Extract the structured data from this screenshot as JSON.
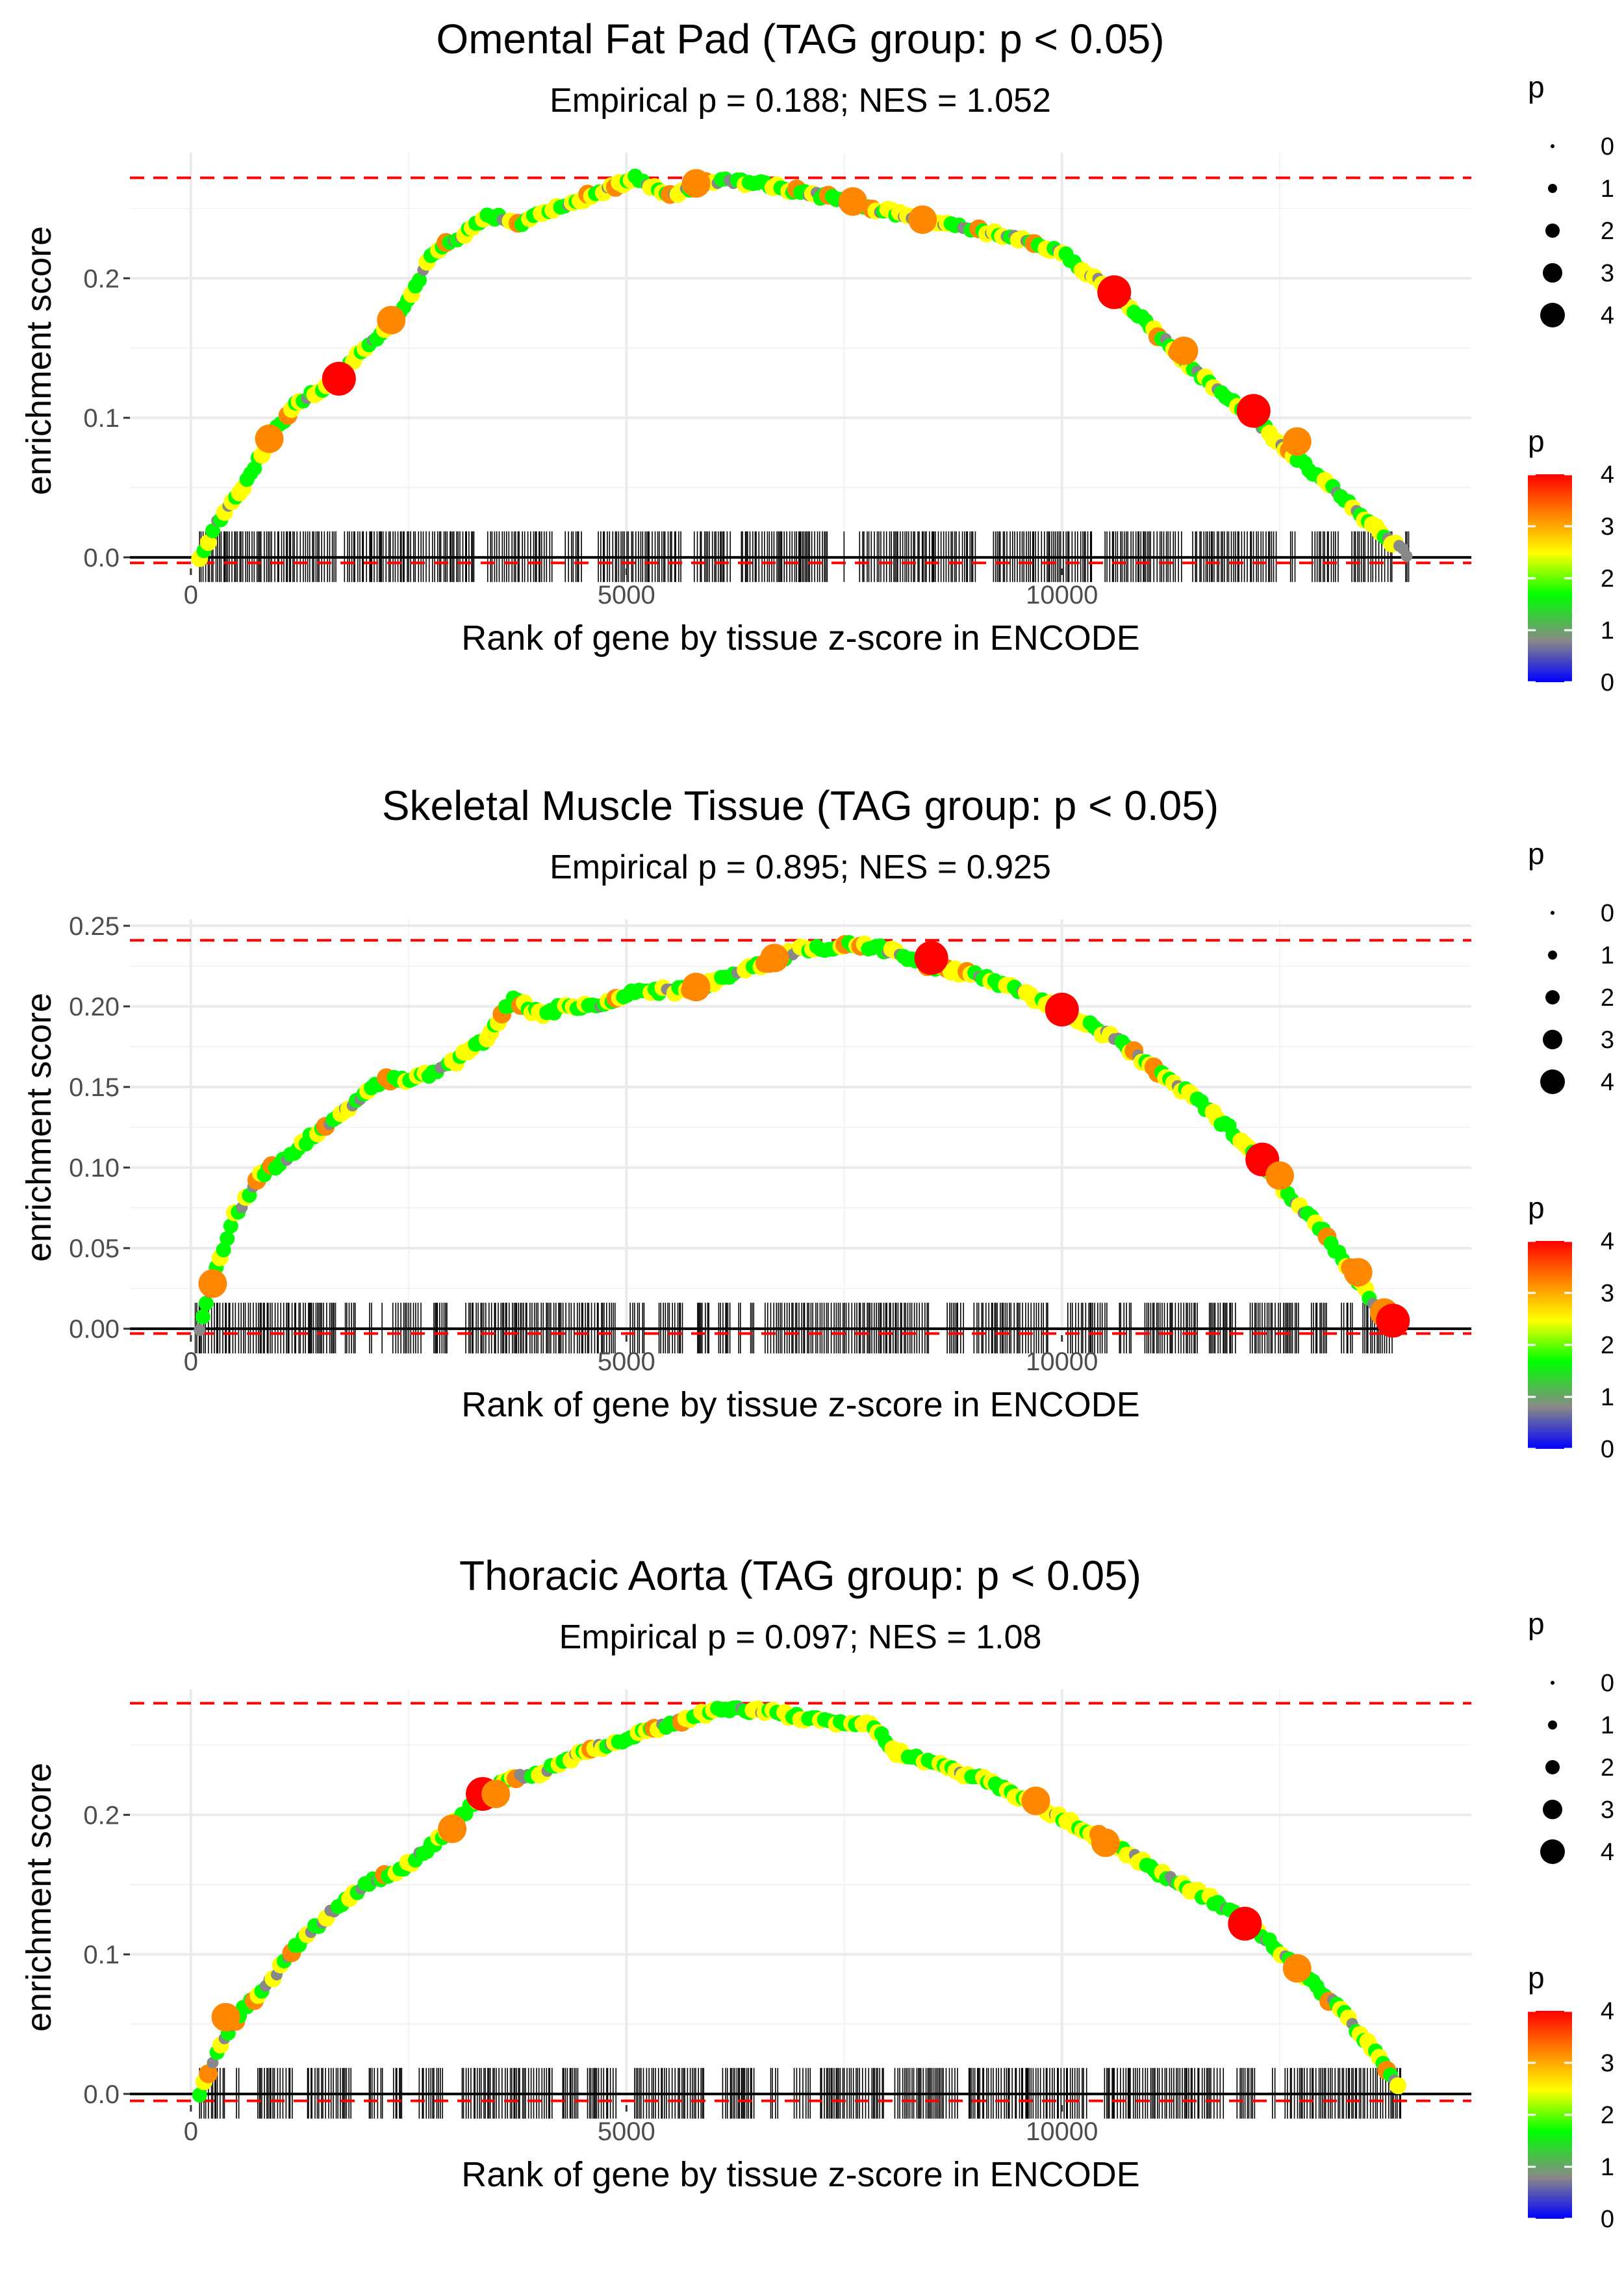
{
  "chart_data": [
    {
      "type": "line",
      "title": "Omental Fat Pad (TAG group: p < 0.05)",
      "subtitle": "Empirical p = 0.188; NES = 1.052",
      "xlabel": "Rank of gene by tissue z-score in ENCODE",
      "ylabel": "enrichment score",
      "xlim": [
        -700,
        14700
      ],
      "ylim": [
        -0.008,
        0.29
      ],
      "x_ticks": [
        0,
        5000,
        10000
      ],
      "x_tick_labels": [
        "0",
        "5000",
        "10000"
      ],
      "y_ticks": [
        0.0,
        0.1,
        0.2
      ],
      "y_tick_labels": [
        "0.0",
        "0.1",
        "0.2"
      ],
      "max_es": 0.272,
      "min_es": -0.004,
      "rug_range": [
        100,
        14000
      ],
      "curve": [
        [
          100,
          0
        ],
        [
          300,
          0.025
        ],
        [
          600,
          0.05
        ],
        [
          900,
          0.085
        ],
        [
          1200,
          0.11
        ],
        [
          1600,
          0.125
        ],
        [
          2000,
          0.15
        ],
        [
          2400,
          0.175
        ],
        [
          2800,
          0.22
        ],
        [
          3100,
          0.23
        ],
        [
          3400,
          0.245
        ],
        [
          3800,
          0.24
        ],
        [
          4200,
          0.25
        ],
        [
          4600,
          0.26
        ],
        [
          5100,
          0.272
        ],
        [
          5500,
          0.26
        ],
        [
          6000,
          0.27
        ],
        [
          6500,
          0.268
        ],
        [
          7000,
          0.262
        ],
        [
          7500,
          0.255
        ],
        [
          8000,
          0.248
        ],
        [
          8500,
          0.24
        ],
        [
          9000,
          0.235
        ],
        [
          9500,
          0.228
        ],
        [
          10000,
          0.218
        ],
        [
          10600,
          0.19
        ],
        [
          11100,
          0.16
        ],
        [
          11600,
          0.13
        ],
        [
          12200,
          0.1
        ],
        [
          12700,
          0.07
        ],
        [
          13200,
          0.045
        ],
        [
          13700,
          0.015
        ],
        [
          14000,
          0
        ]
      ],
      "highlight_points": [
        [
          1700,
          0.128,
          4
        ],
        [
          2300,
          0.17,
          3
        ],
        [
          900,
          0.085,
          3
        ],
        [
          5800,
          0.268,
          3
        ],
        [
          7600,
          0.255,
          3
        ],
        [
          8400,
          0.242,
          3
        ],
        [
          10600,
          0.19,
          4
        ],
        [
          11400,
          0.148,
          3
        ],
        [
          12200,
          0.105,
          4
        ],
        [
          12700,
          0.083,
          3
        ]
      ],
      "legend": {
        "size_title": "p",
        "size_values": [
          "0",
          "1",
          "2",
          "3",
          "4"
        ],
        "color_title": "p",
        "color_values": [
          "0",
          "1",
          "2",
          "3",
          "4"
        ],
        "color_stops": [
          "#0000ff",
          "#888888",
          "#00ff00",
          "#ffff00",
          "#ff8800",
          "#ff0000"
        ]
      }
    },
    {
      "type": "line",
      "title": "Skeletal Muscle Tissue (TAG group: p < 0.05)",
      "subtitle": "Empirical p = 0.895; NES = 0.925",
      "xlabel": "Rank of gene by tissue z-score in ENCODE",
      "ylabel": "enrichment score",
      "xlim": [
        -700,
        14700
      ],
      "ylim": [
        -0.004,
        0.254
      ],
      "x_ticks": [
        0,
        5000,
        10000
      ],
      "x_tick_labels": [
        "0",
        "5000",
        "10000"
      ],
      "y_ticks": [
        0.0,
        0.05,
        0.1,
        0.15,
        0.2,
        0.25
      ],
      "y_tick_labels": [
        "0.00",
        "0.05",
        "0.10",
        "0.15",
        "0.20",
        "0.25"
      ],
      "max_es": 0.241,
      "min_es": -0.003,
      "rug_range": [
        50,
        13800
      ],
      "curve": [
        [
          100,
          0
        ],
        [
          250,
          0.03
        ],
        [
          500,
          0.07
        ],
        [
          800,
          0.095
        ],
        [
          1100,
          0.105
        ],
        [
          1500,
          0.125
        ],
        [
          1900,
          0.14
        ],
        [
          2200,
          0.155
        ],
        [
          2600,
          0.155
        ],
        [
          3000,
          0.165
        ],
        [
          3400,
          0.18
        ],
        [
          3700,
          0.205
        ],
        [
          4000,
          0.195
        ],
        [
          4300,
          0.2
        ],
        [
          4700,
          0.2
        ],
        [
          5100,
          0.21
        ],
        [
          5600,
          0.21
        ],
        [
          6000,
          0.215
        ],
        [
          6500,
          0.225
        ],
        [
          7000,
          0.235
        ],
        [
          7600,
          0.238
        ],
        [
          8000,
          0.235
        ],
        [
          8500,
          0.225
        ],
        [
          9000,
          0.22
        ],
        [
          9500,
          0.21
        ],
        [
          10000,
          0.198
        ],
        [
          10600,
          0.18
        ],
        [
          11100,
          0.16
        ],
        [
          11600,
          0.14
        ],
        [
          12100,
          0.115
        ],
        [
          12500,
          0.09
        ],
        [
          13000,
          0.06
        ],
        [
          13400,
          0.03
        ],
        [
          13700,
          0.008
        ],
        [
          13800,
          0
        ]
      ],
      "highlight_points": [
        [
          250,
          0.028,
          3
        ],
        [
          5800,
          0.212,
          3
        ],
        [
          6700,
          0.23,
          3
        ],
        [
          8500,
          0.23,
          4
        ],
        [
          10000,
          0.198,
          4
        ],
        [
          12300,
          0.105,
          4
        ],
        [
          12500,
          0.095,
          3
        ],
        [
          13400,
          0.035,
          3
        ],
        [
          13700,
          0.01,
          3
        ],
        [
          13800,
          0.005,
          4
        ]
      ],
      "legend": {
        "size_title": "p",
        "size_values": [
          "0",
          "1",
          "2",
          "3",
          "4"
        ],
        "color_title": "p",
        "color_values": [
          "0",
          "1",
          "2",
          "3",
          "4"
        ],
        "color_stops": [
          "#0000ff",
          "#888888",
          "#00ff00",
          "#ffff00",
          "#ff8800",
          "#ff0000"
        ]
      }
    },
    {
      "type": "line",
      "title": "Thoracic Aorta (TAG group: p < 0.05)",
      "subtitle": "Empirical p = 0.097; NES = 1.08",
      "xlabel": "Rank of gene by tissue z-score in ENCODE",
      "ylabel": "enrichment score",
      "xlim": [
        -700,
        14700
      ],
      "ylim": [
        -0.008,
        0.29
      ],
      "x_ticks": [
        0,
        5000,
        10000
      ],
      "x_tick_labels": [
        "0",
        "5000",
        "10000"
      ],
      "y_ticks": [
        0.0,
        0.1,
        0.2
      ],
      "y_tick_labels": [
        "0.0",
        "0.1",
        "0.2"
      ],
      "max_es": 0.28,
      "min_es": -0.005,
      "rug_range": [
        100,
        13900
      ],
      "curve": [
        [
          100,
          0
        ],
        [
          300,
          0.03
        ],
        [
          600,
          0.06
        ],
        [
          900,
          0.08
        ],
        [
          1200,
          0.105
        ],
        [
          1600,
          0.13
        ],
        [
          2000,
          0.15
        ],
        [
          2400,
          0.16
        ],
        [
          2800,
          0.18
        ],
        [
          3200,
          0.205
        ],
        [
          3600,
          0.225
        ],
        [
          4000,
          0.23
        ],
        [
          4500,
          0.245
        ],
        [
          5000,
          0.255
        ],
        [
          5500,
          0.265
        ],
        [
          6000,
          0.275
        ],
        [
          6500,
          0.275
        ],
        [
          7000,
          0.27
        ],
        [
          7500,
          0.265
        ],
        [
          7800,
          0.265
        ],
        [
          8100,
          0.245
        ],
        [
          8600,
          0.235
        ],
        [
          9100,
          0.225
        ],
        [
          9600,
          0.21
        ],
        [
          10100,
          0.195
        ],
        [
          10700,
          0.175
        ],
        [
          11200,
          0.155
        ],
        [
          11700,
          0.14
        ],
        [
          12200,
          0.12
        ],
        [
          12700,
          0.09
        ],
        [
          13200,
          0.06
        ],
        [
          13600,
          0.03
        ],
        [
          13900,
          0
        ]
      ],
      "highlight_points": [
        [
          400,
          0.055,
          3
        ],
        [
          3000,
          0.19,
          3
        ],
        [
          3350,
          0.215,
          4
        ],
        [
          3500,
          0.215,
          3
        ],
        [
          9700,
          0.21,
          3
        ],
        [
          10500,
          0.18,
          3
        ],
        [
          12100,
          0.122,
          4
        ],
        [
          12700,
          0.09,
          3
        ]
      ],
      "legend": {
        "size_title": "p",
        "size_values": [
          "0",
          "1",
          "2",
          "3",
          "4"
        ],
        "color_title": "p",
        "color_values": [
          "0",
          "1",
          "2",
          "3",
          "4"
        ],
        "color_stops": [
          "#0000ff",
          "#888888",
          "#00ff00",
          "#ffff00",
          "#ff8800",
          "#ff0000"
        ]
      }
    }
  ]
}
